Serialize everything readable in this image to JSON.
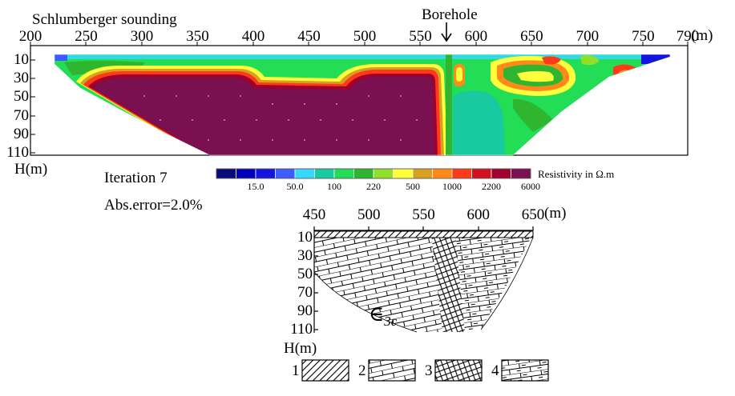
{
  "header": {
    "method_title": "Schlumberger sounding",
    "borehole_label": "Borehole"
  },
  "section": {
    "x_ticks": [
      "200",
      "250",
      "300",
      "350",
      "400",
      "450",
      "500",
      "550",
      "600",
      "650",
      "700",
      "750",
      "790"
    ],
    "x_unit": "(m)",
    "y_ticks": [
      "10",
      "30",
      "50",
      "70",
      "90",
      "110"
    ],
    "y_unit": "H(m)",
    "iteration": "Iteration 7",
    "abs_error": "Abs.error=2.0%"
  },
  "colorbar": {
    "title": "Resistivity in Ω.m",
    "labels": [
      "15.0",
      "50.0",
      "100",
      "220",
      "500",
      "1000",
      "2200",
      "6000"
    ],
    "colors": [
      "#0a0a7a",
      "#0000b8",
      "#1414e0",
      "#3c5cff",
      "#37d8ff",
      "#19c9a0",
      "#22dd55",
      "#2fb52f",
      "#8ee02a",
      "#ffff3c",
      "#d6a020",
      "#ff8a1a",
      "#ff3a1a",
      "#d40f20",
      "#a0002e",
      "#7a1050"
    ]
  },
  "geology": {
    "x_ticks": [
      "450",
      "500",
      "550",
      "600",
      "650"
    ],
    "x_unit": "(m)",
    "y_ticks": [
      "10",
      "30",
      "50",
      "70",
      "90",
      "110"
    ],
    "y_unit": "H(m)",
    "formation_prefix": "∈",
    "formation_sub": "3c"
  },
  "legend": {
    "items": [
      {
        "number": "1",
        "pattern": "hatched"
      },
      {
        "number": "2",
        "pattern": "brick"
      },
      {
        "number": "3",
        "pattern": "crosshatch"
      },
      {
        "number": "4",
        "pattern": "dashed-brick"
      }
    ]
  }
}
